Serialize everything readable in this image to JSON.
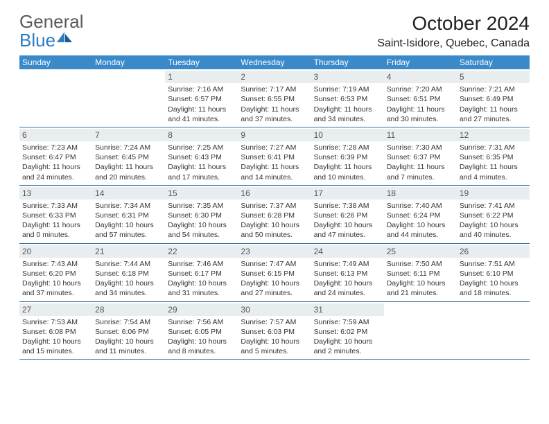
{
  "brand": {
    "part1": "General",
    "part2": "Blue"
  },
  "title": "October 2024",
  "location": "Saint-Isidore, Quebec, Canada",
  "colors": {
    "header_bar": "#3a89c9",
    "row_rule": "#2e6fa8",
    "daynum_band": "#e8edf0",
    "logo_gray": "#5a5a5a",
    "logo_blue": "#2e7cc0"
  },
  "daysOfWeek": [
    "Sunday",
    "Monday",
    "Tuesday",
    "Wednesday",
    "Thursday",
    "Friday",
    "Saturday"
  ],
  "weeks": [
    [
      {
        "n": "",
        "empty": true
      },
      {
        "n": "",
        "empty": true
      },
      {
        "n": "1",
        "sunrise": "7:16 AM",
        "sunset": "6:57 PM",
        "dl1": "Daylight: 11 hours",
        "dl2": "and 41 minutes."
      },
      {
        "n": "2",
        "sunrise": "7:17 AM",
        "sunset": "6:55 PM",
        "dl1": "Daylight: 11 hours",
        "dl2": "and 37 minutes."
      },
      {
        "n": "3",
        "sunrise": "7:19 AM",
        "sunset": "6:53 PM",
        "dl1": "Daylight: 11 hours",
        "dl2": "and 34 minutes."
      },
      {
        "n": "4",
        "sunrise": "7:20 AM",
        "sunset": "6:51 PM",
        "dl1": "Daylight: 11 hours",
        "dl2": "and 30 minutes."
      },
      {
        "n": "5",
        "sunrise": "7:21 AM",
        "sunset": "6:49 PM",
        "dl1": "Daylight: 11 hours",
        "dl2": "and 27 minutes."
      }
    ],
    [
      {
        "n": "6",
        "sunrise": "7:23 AM",
        "sunset": "6:47 PM",
        "dl1": "Daylight: 11 hours",
        "dl2": "and 24 minutes."
      },
      {
        "n": "7",
        "sunrise": "7:24 AM",
        "sunset": "6:45 PM",
        "dl1": "Daylight: 11 hours",
        "dl2": "and 20 minutes."
      },
      {
        "n": "8",
        "sunrise": "7:25 AM",
        "sunset": "6:43 PM",
        "dl1": "Daylight: 11 hours",
        "dl2": "and 17 minutes."
      },
      {
        "n": "9",
        "sunrise": "7:27 AM",
        "sunset": "6:41 PM",
        "dl1": "Daylight: 11 hours",
        "dl2": "and 14 minutes."
      },
      {
        "n": "10",
        "sunrise": "7:28 AM",
        "sunset": "6:39 PM",
        "dl1": "Daylight: 11 hours",
        "dl2": "and 10 minutes."
      },
      {
        "n": "11",
        "sunrise": "7:30 AM",
        "sunset": "6:37 PM",
        "dl1": "Daylight: 11 hours",
        "dl2": "and 7 minutes."
      },
      {
        "n": "12",
        "sunrise": "7:31 AM",
        "sunset": "6:35 PM",
        "dl1": "Daylight: 11 hours",
        "dl2": "and 4 minutes."
      }
    ],
    [
      {
        "n": "13",
        "sunrise": "7:33 AM",
        "sunset": "6:33 PM",
        "dl1": "Daylight: 11 hours",
        "dl2": "and 0 minutes."
      },
      {
        "n": "14",
        "sunrise": "7:34 AM",
        "sunset": "6:31 PM",
        "dl1": "Daylight: 10 hours",
        "dl2": "and 57 minutes."
      },
      {
        "n": "15",
        "sunrise": "7:35 AM",
        "sunset": "6:30 PM",
        "dl1": "Daylight: 10 hours",
        "dl2": "and 54 minutes."
      },
      {
        "n": "16",
        "sunrise": "7:37 AM",
        "sunset": "6:28 PM",
        "dl1": "Daylight: 10 hours",
        "dl2": "and 50 minutes."
      },
      {
        "n": "17",
        "sunrise": "7:38 AM",
        "sunset": "6:26 PM",
        "dl1": "Daylight: 10 hours",
        "dl2": "and 47 minutes."
      },
      {
        "n": "18",
        "sunrise": "7:40 AM",
        "sunset": "6:24 PM",
        "dl1": "Daylight: 10 hours",
        "dl2": "and 44 minutes."
      },
      {
        "n": "19",
        "sunrise": "7:41 AM",
        "sunset": "6:22 PM",
        "dl1": "Daylight: 10 hours",
        "dl2": "and 40 minutes."
      }
    ],
    [
      {
        "n": "20",
        "sunrise": "7:43 AM",
        "sunset": "6:20 PM",
        "dl1": "Daylight: 10 hours",
        "dl2": "and 37 minutes."
      },
      {
        "n": "21",
        "sunrise": "7:44 AM",
        "sunset": "6:18 PM",
        "dl1": "Daylight: 10 hours",
        "dl2": "and 34 minutes."
      },
      {
        "n": "22",
        "sunrise": "7:46 AM",
        "sunset": "6:17 PM",
        "dl1": "Daylight: 10 hours",
        "dl2": "and 31 minutes."
      },
      {
        "n": "23",
        "sunrise": "7:47 AM",
        "sunset": "6:15 PM",
        "dl1": "Daylight: 10 hours",
        "dl2": "and 27 minutes."
      },
      {
        "n": "24",
        "sunrise": "7:49 AM",
        "sunset": "6:13 PM",
        "dl1": "Daylight: 10 hours",
        "dl2": "and 24 minutes."
      },
      {
        "n": "25",
        "sunrise": "7:50 AM",
        "sunset": "6:11 PM",
        "dl1": "Daylight: 10 hours",
        "dl2": "and 21 minutes."
      },
      {
        "n": "26",
        "sunrise": "7:51 AM",
        "sunset": "6:10 PM",
        "dl1": "Daylight: 10 hours",
        "dl2": "and 18 minutes."
      }
    ],
    [
      {
        "n": "27",
        "sunrise": "7:53 AM",
        "sunset": "6:08 PM",
        "dl1": "Daylight: 10 hours",
        "dl2": "and 15 minutes."
      },
      {
        "n": "28",
        "sunrise": "7:54 AM",
        "sunset": "6:06 PM",
        "dl1": "Daylight: 10 hours",
        "dl2": "and 11 minutes."
      },
      {
        "n": "29",
        "sunrise": "7:56 AM",
        "sunset": "6:05 PM",
        "dl1": "Daylight: 10 hours",
        "dl2": "and 8 minutes."
      },
      {
        "n": "30",
        "sunrise": "7:57 AM",
        "sunset": "6:03 PM",
        "dl1": "Daylight: 10 hours",
        "dl2": "and 5 minutes."
      },
      {
        "n": "31",
        "sunrise": "7:59 AM",
        "sunset": "6:02 PM",
        "dl1": "Daylight: 10 hours",
        "dl2": "and 2 minutes."
      },
      {
        "n": "",
        "empty": true
      },
      {
        "n": "",
        "empty": true
      }
    ]
  ],
  "labels": {
    "sunrise": "Sunrise: ",
    "sunset": "Sunset: "
  }
}
